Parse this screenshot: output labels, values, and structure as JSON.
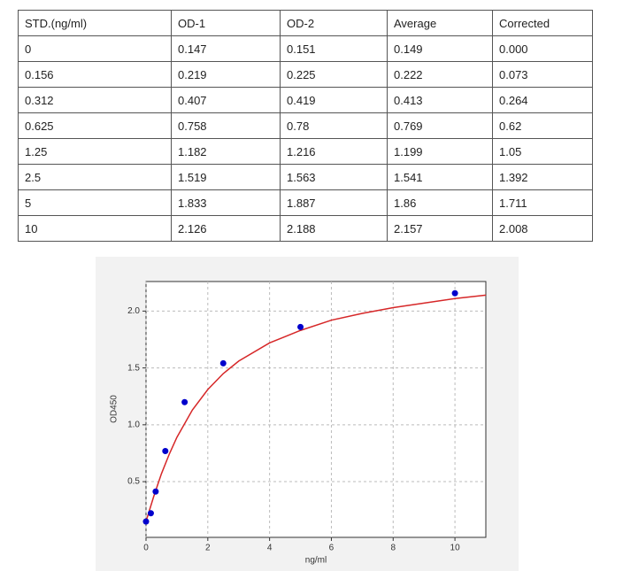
{
  "table": {
    "header": [
      "STD.(ng/ml)",
      "OD-1",
      "OD-2",
      "Average",
      "Corrected"
    ],
    "rows": [
      [
        "0",
        "0.147",
        "0.151",
        "0.149",
        "0.000"
      ],
      [
        "0.156",
        "0.219",
        "0.225",
        "0.222",
        "0.073"
      ],
      [
        "0.312",
        "0.407",
        "0.419",
        "0.413",
        "0.264"
      ],
      [
        "0.625",
        "0.758",
        "0.78",
        "0.769",
        "0.62"
      ],
      [
        "1.25",
        "1.182",
        "1.216",
        "1.199",
        "1.05"
      ],
      [
        "2.5",
        "1.519",
        "1.563",
        "1.541",
        "1.392"
      ],
      [
        "5",
        "1.833",
        "1.887",
        "1.86",
        "1.711"
      ],
      [
        "10",
        "2.126",
        "2.188",
        "2.157",
        "2.008"
      ]
    ]
  },
  "chart_data": {
    "type": "scatter",
    "xlabel": "ng/ml",
    "ylabel": "OD450",
    "series": [
      {
        "type": "scatter",
        "color": "#0000cc",
        "x": [
          0,
          0.156,
          0.312,
          0.625,
          1.25,
          2.5,
          5,
          10
        ],
        "values": [
          0.149,
          0.222,
          0.413,
          0.769,
          1.199,
          1.541,
          1.86,
          2.157
        ]
      },
      {
        "type": "line",
        "color": "#d62728",
        "x": [
          0,
          0.25,
          0.5,
          0.75,
          1,
          1.5,
          2,
          2.5,
          3,
          4,
          5,
          6,
          7,
          8,
          9,
          10,
          11
        ],
        "values": [
          0.15,
          0.37,
          0.57,
          0.74,
          0.89,
          1.13,
          1.31,
          1.45,
          1.56,
          1.72,
          1.83,
          1.92,
          1.98,
          2.03,
          2.07,
          2.11,
          2.14
        ]
      }
    ],
    "xlim": [
      0,
      11
    ],
    "xticks": [
      0,
      2,
      4,
      6,
      8,
      10
    ],
    "ylim": [
      0.01,
      2.26
    ],
    "yticks": [
      0.5,
      {
        "value": 1,
        "label": "1.0"
      },
      1.5,
      {
        "value": 2,
        "label": "2.0"
      }
    ],
    "grid": true
  }
}
